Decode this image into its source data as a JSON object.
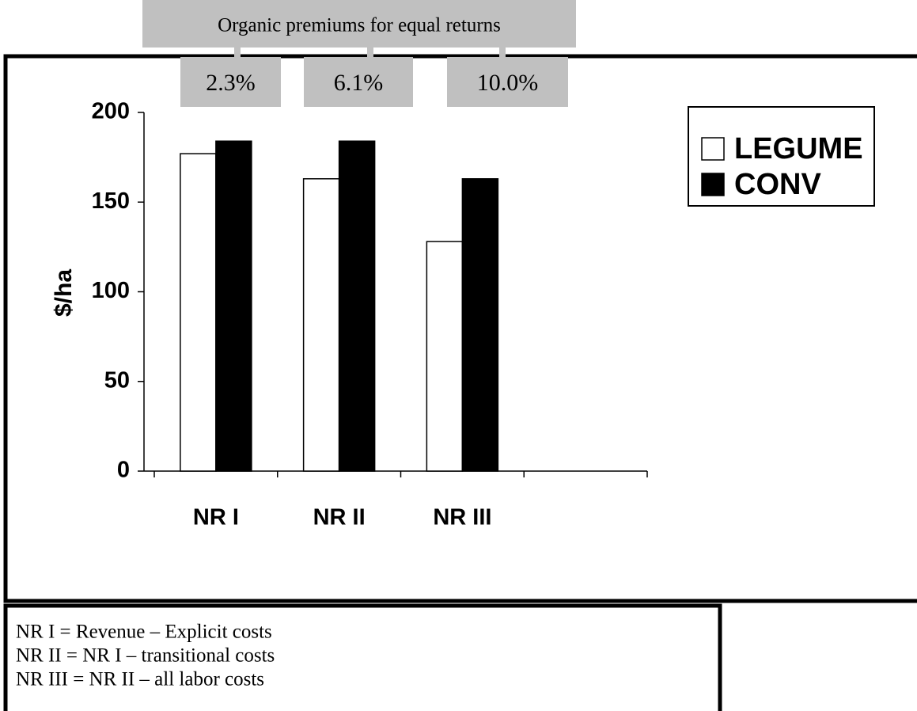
{
  "chart_data": {
    "type": "bar",
    "annotation_title": "Organic premiums for equal returns",
    "premiums": [
      "2.3%",
      "6.1%",
      "10.0%"
    ],
    "categories": [
      "NR I",
      "NR II",
      "NR III",
      null
    ],
    "series": [
      {
        "name": "LEGUME",
        "color": "#ffffff",
        "values": [
          177,
          163,
          128,
          null
        ]
      },
      {
        "name": "CONV",
        "color": "#000000",
        "values": [
          184,
          184,
          163,
          null
        ]
      }
    ],
    "ylabel": "$/ha",
    "ylim": [
      0,
      200
    ],
    "yticks": [
      0,
      50,
      100,
      150,
      200
    ],
    "legend": "upper right",
    "notes": [
      "NR I = Revenue – Explicit costs",
      "NR II = NR I – transitional costs",
      "NR III = NR II – all labor costs"
    ]
  }
}
